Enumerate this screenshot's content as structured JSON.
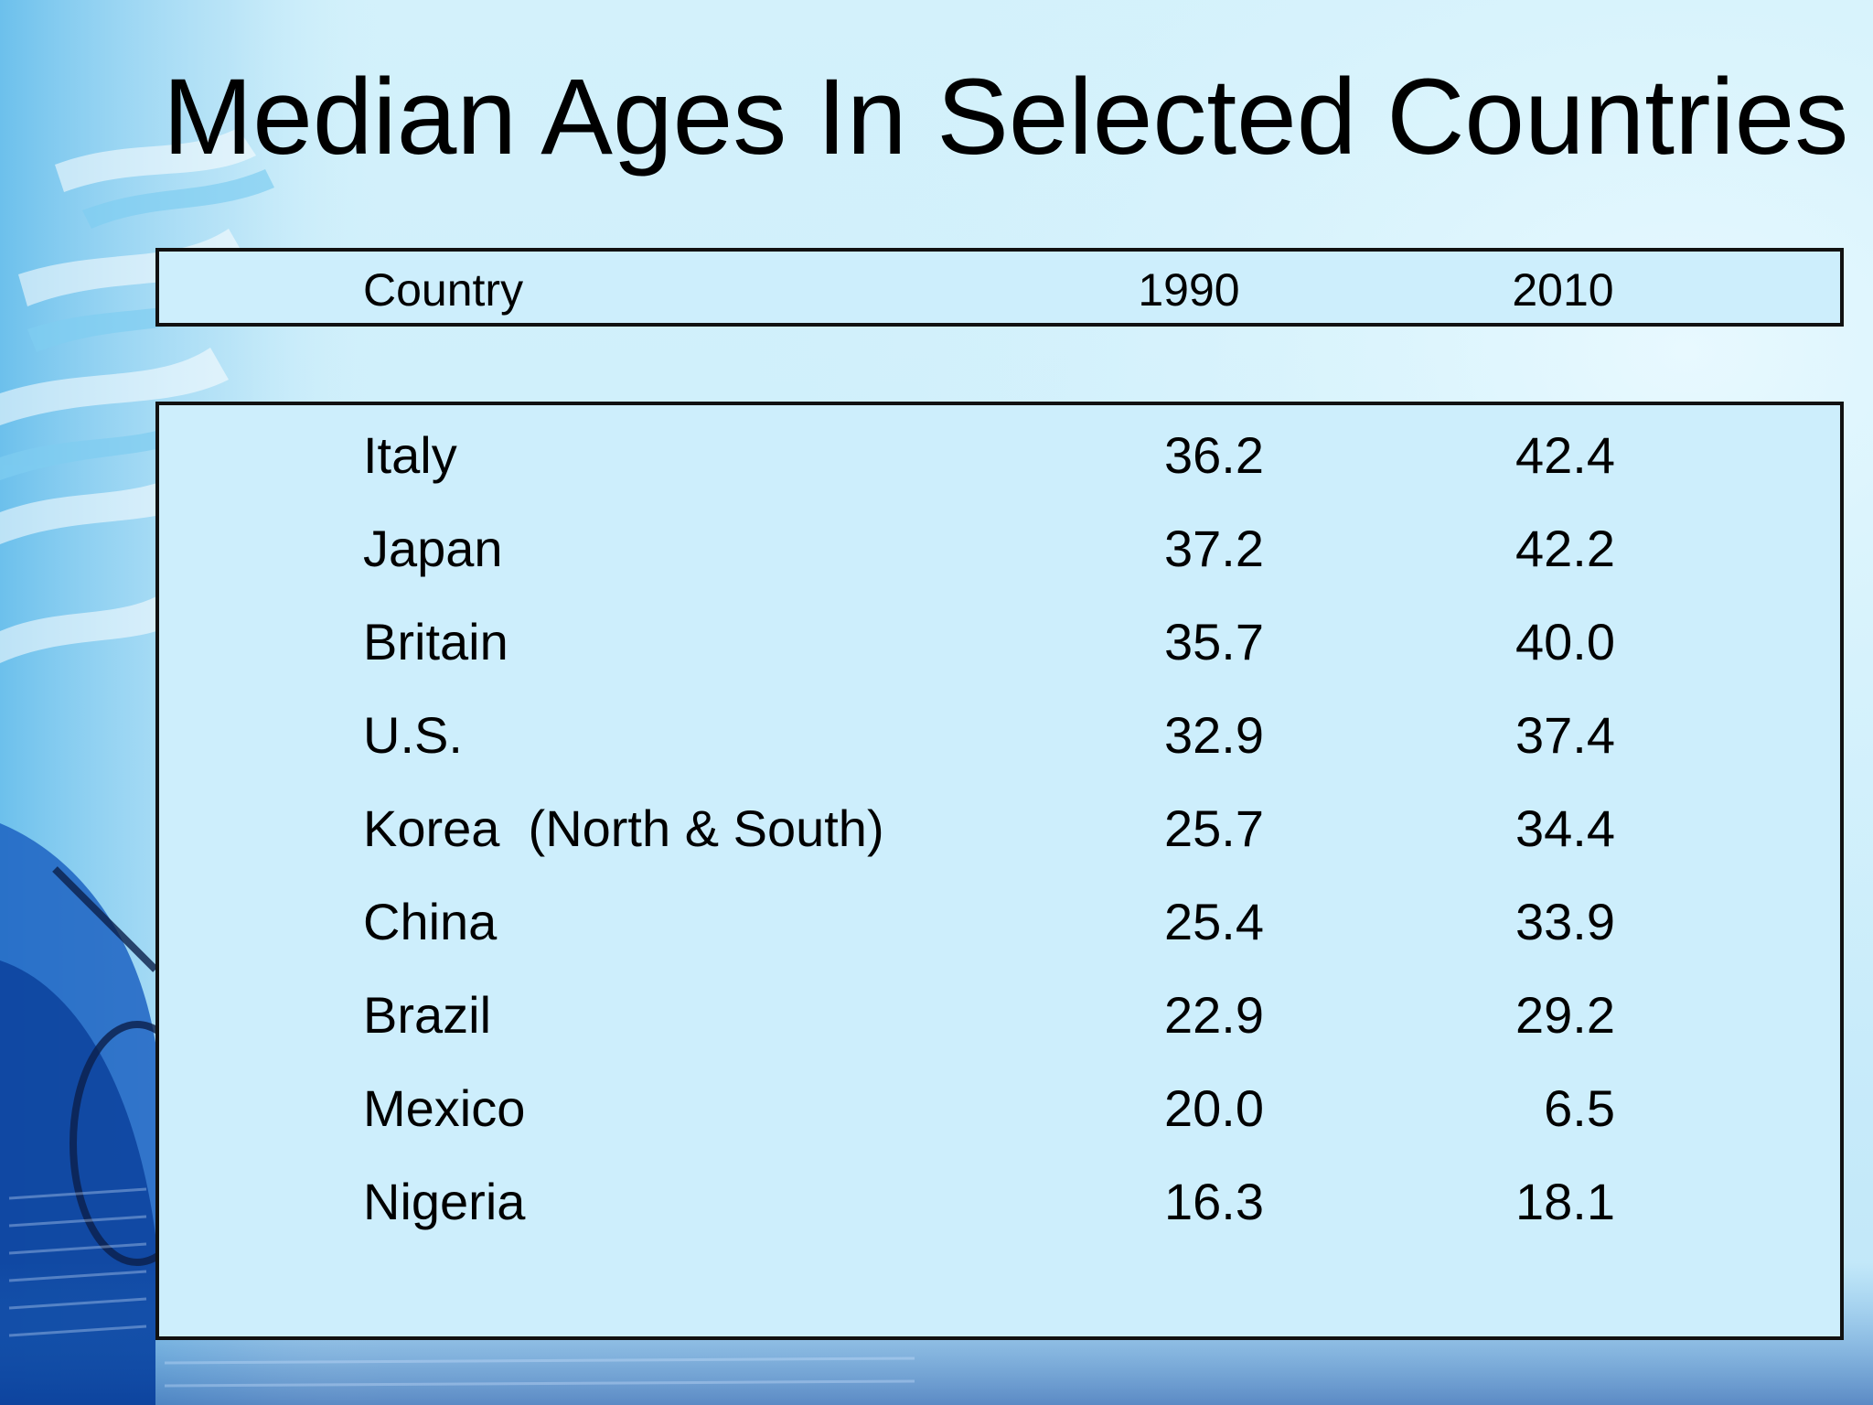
{
  "slide": {
    "title": "Median Ages In Selected Countries"
  },
  "table": {
    "headers": {
      "country": "Country",
      "year1": "1990",
      "year2": "2010"
    },
    "rows": [
      {
        "country": "Italy",
        "y1990": "36.2",
        "y2010": "42.4"
      },
      {
        "country": "Japan",
        "y1990": "37.2",
        "y2010": "42.2"
      },
      {
        "country": "Britain",
        "y1990": "35.7",
        "y2010": "40.0"
      },
      {
        "country": "U.S.",
        "y1990": "32.9",
        "y2010": "37.4"
      },
      {
        "country": "Korea  (North & South)",
        "y1990": "25.7",
        "y2010": "34.4"
      },
      {
        "country": "China",
        "y1990": "25.4",
        "y2010": "33.9"
      },
      {
        "country": "Brazil",
        "y1990": "22.9",
        "y2010": "29.2"
      },
      {
        "country": "Mexico",
        "y1990": "20.0",
        "y2010": "6.5"
      },
      {
        "country": "Nigeria",
        "y1990": "16.3",
        "y2010": "18.1"
      }
    ]
  },
  "colors": {
    "background": "#cdeefb",
    "accent_blue": "#2a7fd0",
    "deep_blue": "#0a3f9a"
  }
}
